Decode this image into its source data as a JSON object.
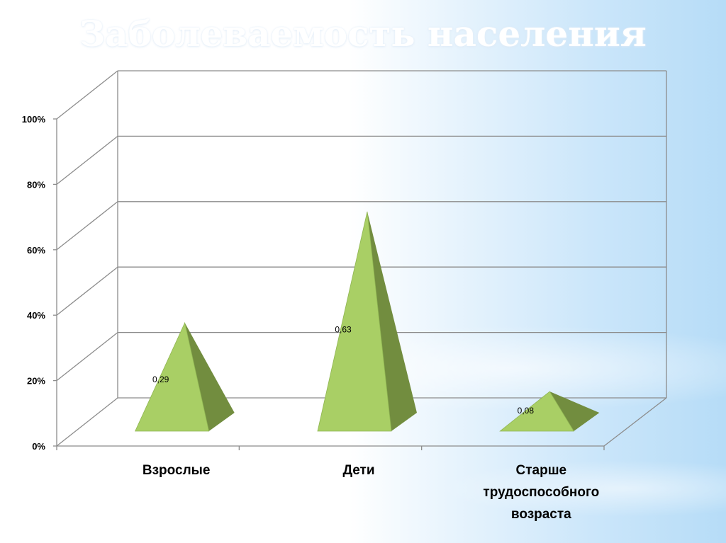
{
  "slide": {
    "title": "Заболеваемость населения"
  },
  "colors": {
    "pyramid_front": "#a9cf65",
    "pyramid_side": "#728d3f",
    "pyramid_outline": "#8fb552",
    "grid": "#8c8c8c",
    "axis": "#8c8c8c"
  },
  "chart_data": {
    "type": "bar",
    "shape": "pyramid-3d",
    "categories": [
      "Взрослые",
      "Дети",
      "Старше трудоспособного возраста"
    ],
    "category_lines": [
      [
        "Взрослые"
      ],
      [
        "Дети"
      ],
      [
        "Старше",
        "трудоспособного",
        "возраста"
      ]
    ],
    "values": [
      0.29,
      0.63,
      0.08
    ],
    "data_labels": [
      "0,29",
      "0,63",
      "0,08"
    ],
    "ylim": [
      0,
      1
    ],
    "yticks": [
      0,
      0.2,
      0.4,
      0.6,
      0.8,
      1.0
    ],
    "ytick_labels": [
      "0%",
      "20%",
      "40%",
      "60%",
      "80%",
      "100%"
    ],
    "title": "",
    "xlabel": "",
    "ylabel": "",
    "grid": true,
    "legend": "none"
  }
}
